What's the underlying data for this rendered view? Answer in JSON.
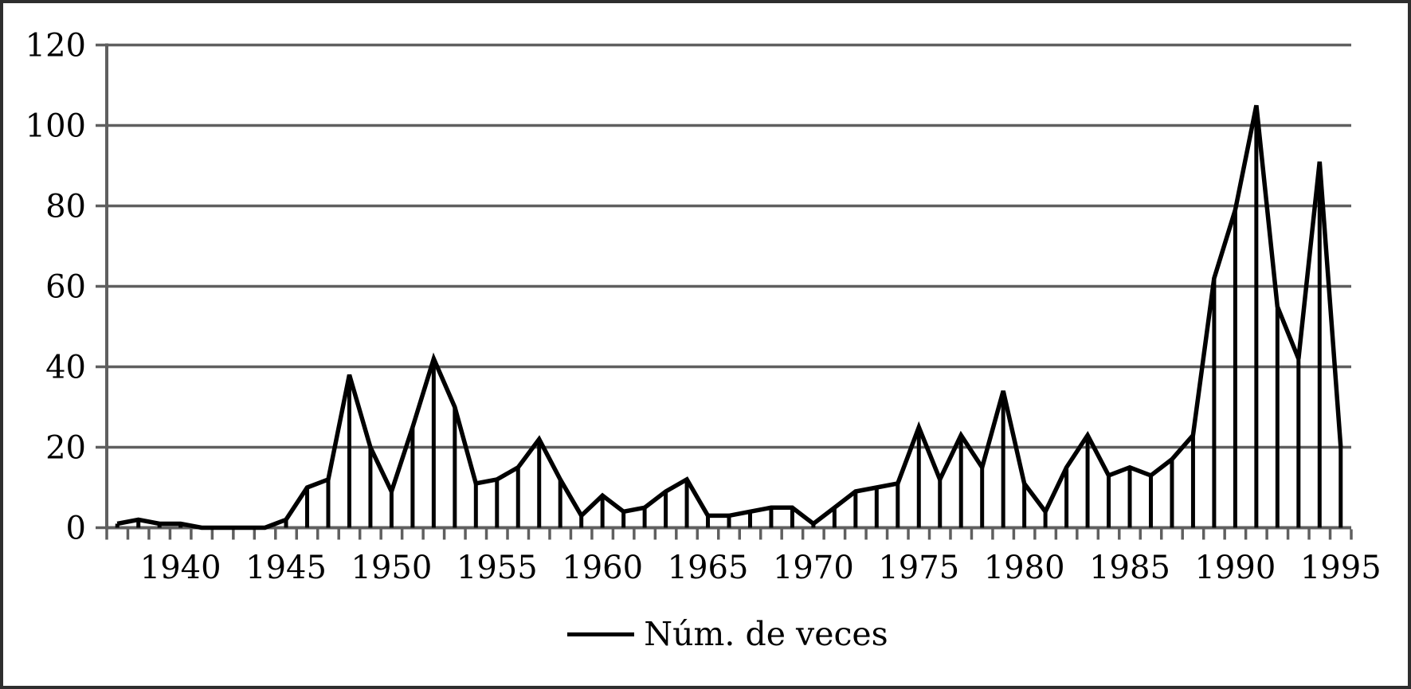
{
  "chart_data": {
    "type": "line",
    "title": "",
    "xlabel": "",
    "ylabel": "",
    "x": [
      1937,
      1938,
      1939,
      1940,
      1941,
      1942,
      1943,
      1944,
      1945,
      1946,
      1947,
      1948,
      1949,
      1950,
      1951,
      1952,
      1953,
      1954,
      1955,
      1956,
      1957,
      1958,
      1959,
      1960,
      1961,
      1962,
      1963,
      1964,
      1965,
      1966,
      1967,
      1968,
      1969,
      1970,
      1971,
      1972,
      1973,
      1974,
      1975,
      1976,
      1977,
      1978,
      1979,
      1980,
      1981,
      1982,
      1983,
      1984,
      1985,
      1986,
      1987,
      1988,
      1989,
      1990,
      1991,
      1992,
      1993,
      1994,
      1995
    ],
    "series": [
      {
        "name": "Núm. de veces",
        "values": [
          1,
          2,
          1,
          1,
          0,
          0,
          0,
          0,
          2,
          10,
          12,
          38,
          20,
          9,
          25,
          42,
          30,
          11,
          12,
          15,
          22,
          12,
          3,
          8,
          4,
          5,
          9,
          12,
          3,
          3,
          4,
          5,
          5,
          1,
          5,
          9,
          10,
          11,
          25,
          12,
          23,
          15,
          34,
          11,
          4,
          15,
          23,
          13,
          15,
          13,
          17,
          23,
          62,
          79,
          105,
          55,
          42,
          91,
          20
        ]
      }
    ],
    "x_tick_label_years": [
      1940,
      1945,
      1950,
      1955,
      1960,
      1965,
      1970,
      1975,
      1980,
      1985,
      1990,
      1995
    ],
    "y_ticks": [
      0,
      20,
      40,
      60,
      80,
      100,
      120
    ],
    "ylim": [
      0,
      120
    ],
    "grid": "horizontal",
    "legend_position": "bottom-center",
    "style_notes": {
      "marker": "none",
      "drop_lines_to_baseline": true
    },
    "colors": {
      "series_line": "#000000",
      "drop_line": "#000000",
      "axis": "#5f5f5f",
      "gridline": "#5f5f5f",
      "tick": "#5f5f5f",
      "label_text": "#000000",
      "background": "#ffffff",
      "frame_border": "#2e2e2e"
    }
  }
}
